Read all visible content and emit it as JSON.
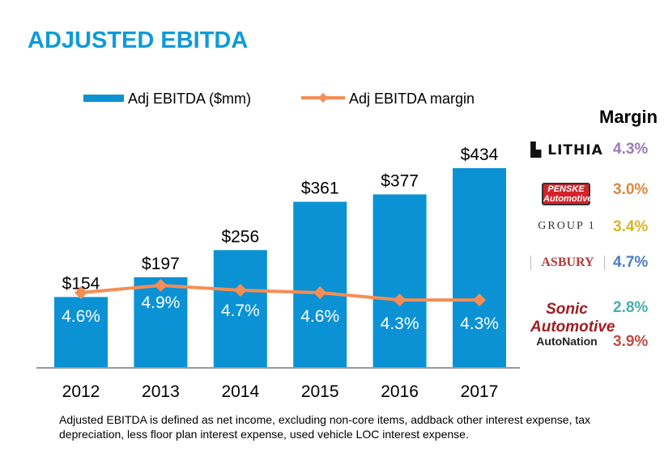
{
  "title": "ADJUSTED EBITDA",
  "chart_data": {
    "type": "bar+line",
    "categories": [
      "2012",
      "2013",
      "2014",
      "2015",
      "2016",
      "2017"
    ],
    "series": [
      {
        "name": "Adj EBITDA ($mm)",
        "type": "bar",
        "values": [
          154,
          197,
          256,
          361,
          377,
          434
        ],
        "labels": [
          "$154",
          "$197",
          "$256",
          "$361",
          "$377",
          "$434"
        ],
        "color": "#0a92d4"
      },
      {
        "name": "Adj EBITDA margin",
        "type": "line",
        "values": [
          4.6,
          4.9,
          4.7,
          4.6,
          4.3,
          4.3
        ],
        "labels": [
          "4.6%",
          "4.9%",
          "4.7%",
          "4.6%",
          "4.3%",
          "4.3%"
        ],
        "color": "#f58d55"
      }
    ],
    "legend": "top"
  },
  "peers": {
    "header": "Margin",
    "items": [
      {
        "name": "LITHIA",
        "margin": "4.3%",
        "color": "#9b7bb5"
      },
      {
        "name": "PENSKE Automotive",
        "margin": "3.0%",
        "color": "#e0883c"
      },
      {
        "name": "GROUP 1",
        "margin": "3.4%",
        "color": "#d7b528"
      },
      {
        "name": "ASBURY",
        "margin": "4.7%",
        "color": "#4d7cc4"
      },
      {
        "name": "Sonic Automotive",
        "margin": "2.8%",
        "color": "#46aeb0"
      },
      {
        "name": "AutoNation",
        "margin": "3.9%",
        "color": "#c44a3e"
      }
    ]
  },
  "note": "Adjusted EBITDA is defined as net income, excluding non-core items, addback other interest expense, tax\ndepreciation, less floor plan interest expense, used vehicle LOC interest expense."
}
